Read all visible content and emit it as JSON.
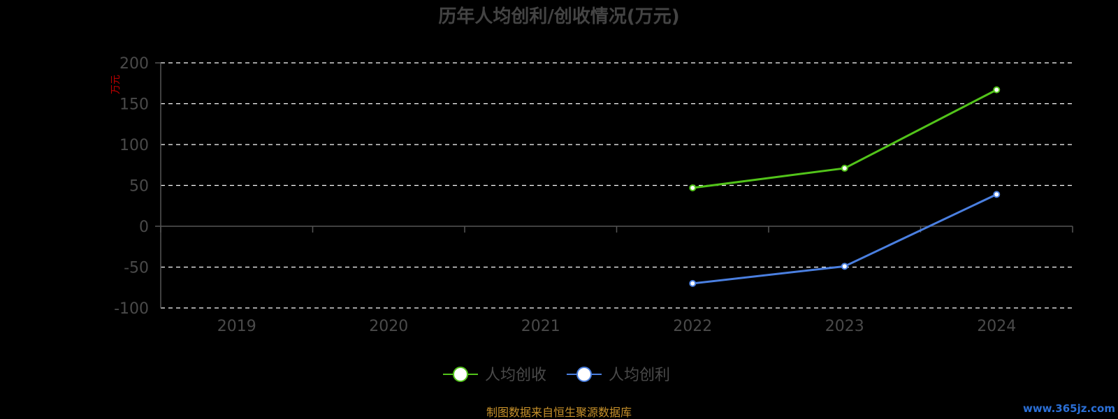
{
  "chart_data": {
    "type": "line",
    "title": "历年人均创利/创收情况(万元)",
    "y_unit": "万元",
    "categories": [
      "2019",
      "2020",
      "2021",
      "2022",
      "2023",
      "2024"
    ],
    "ylim": [
      -100,
      200
    ],
    "yticks": [
      200,
      150,
      100,
      50,
      0,
      -50,
      -100
    ],
    "grid": true,
    "legend_position": "bottom-center",
    "series": [
      {
        "name": "人均创收",
        "color": "#52c41a",
        "values": [
          null,
          null,
          null,
          47,
          71,
          167
        ]
      },
      {
        "name": "人均创利",
        "color": "#4a7fe0",
        "values": [
          null,
          null,
          null,
          -70,
          -49,
          39
        ]
      }
    ]
  },
  "footer": {
    "source_note": "制图数据来自恒生聚源数据库",
    "watermark": "www.365jz.com"
  }
}
